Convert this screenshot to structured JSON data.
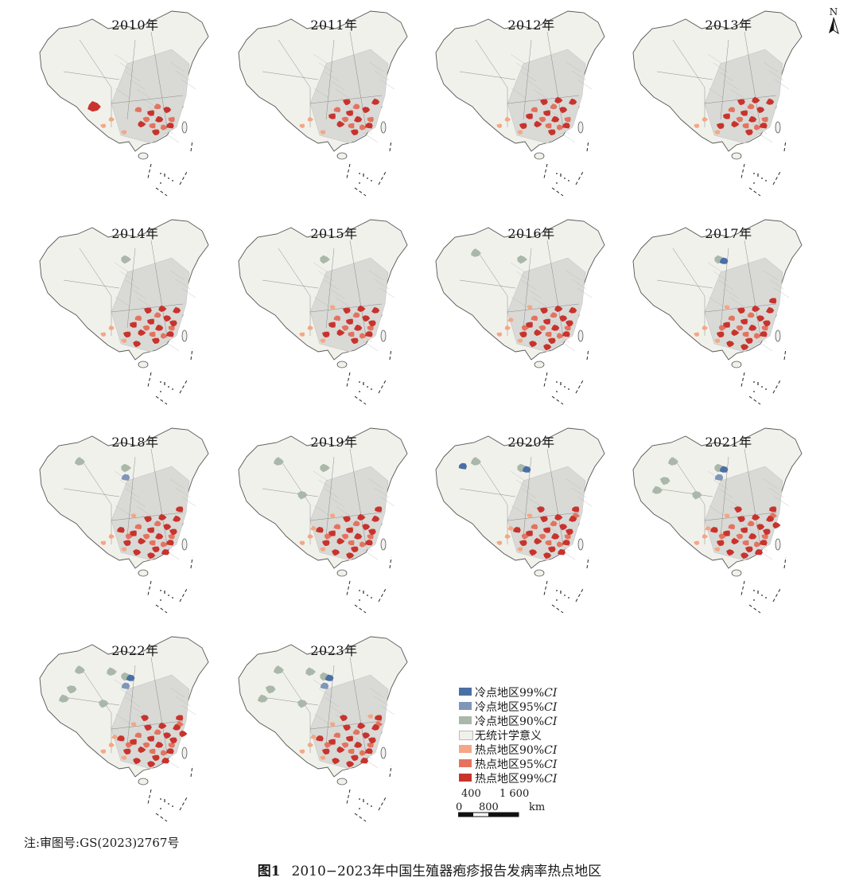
{
  "colors": {
    "cold99": "#4a6fa5",
    "cold95": "#7f96b8",
    "cold90": "#aab8a9",
    "none": "#f1f1ec",
    "hot90": "#f3a784",
    "hot95": "#e3735f",
    "hot99": "#c8332d",
    "boundary": "#555555",
    "county": "#b5b5b5"
  },
  "north_label": "N",
  "maps": [
    {
      "year": "2010年",
      "hot99": 6,
      "hot95": 6,
      "hot90": 3,
      "cold99": 0,
      "cold95": 0,
      "cold90": 0,
      "tibet_hot": 1
    },
    {
      "year": "2011年",
      "hot99": 9,
      "hot95": 6,
      "hot90": 3,
      "cold99": 0,
      "cold95": 0,
      "cold90": 0,
      "tibet_hot": 0
    },
    {
      "year": "2012年",
      "hot99": 11,
      "hot95": 6,
      "hot90": 3,
      "cold99": 0,
      "cold95": 0,
      "cold90": 0,
      "tibet_hot": 0
    },
    {
      "year": "2013年",
      "hot99": 11,
      "hot95": 6,
      "hot90": 3,
      "cold99": 0,
      "cold95": 0,
      "cold90": 0,
      "tibet_hot": 0
    },
    {
      "year": "2014年",
      "hot99": 13,
      "hot95": 6,
      "hot90": 3,
      "cold99": 0,
      "cold95": 0,
      "cold90": 1,
      "tibet_hot": 0
    },
    {
      "year": "2015年",
      "hot99": 12,
      "hot95": 6,
      "hot90": 4,
      "cold99": 0,
      "cold95": 0,
      "cold90": 1,
      "tibet_hot": 0
    },
    {
      "year": "2016年",
      "hot99": 14,
      "hot95": 7,
      "hot90": 5,
      "cold99": 0,
      "cold95": 0,
      "cold90": 2,
      "tibet_hot": 0
    },
    {
      "year": "2017年",
      "hot99": 15,
      "hot95": 7,
      "hot90": 4,
      "cold99": 1,
      "cold95": 0,
      "cold90": 1,
      "tibet_hot": 0
    },
    {
      "year": "2018年",
      "hot99": 17,
      "hot95": 7,
      "hot90": 4,
      "cold99": 0,
      "cold95": 1,
      "cold90": 2,
      "tibet_hot": 0
    },
    {
      "year": "2019年",
      "hot99": 16,
      "hot95": 7,
      "hot90": 5,
      "cold99": 0,
      "cold95": 0,
      "cold90": 3,
      "tibet_hot": 0
    },
    {
      "year": "2020年",
      "hot99": 18,
      "hot95": 8,
      "hot90": 5,
      "cold99": 2,
      "cold95": 0,
      "cold90": 2,
      "tibet_hot": 0
    },
    {
      "year": "2021年",
      "hot99": 19,
      "hot95": 8,
      "hot90": 5,
      "cold99": 1,
      "cold95": 1,
      "cold90": 5,
      "tibet_hot": 0
    },
    {
      "year": "2022年",
      "hot99": 19,
      "hot95": 8,
      "hot90": 5,
      "cold99": 1,
      "cold95": 1,
      "cold90": 6,
      "tibet_hot": 0
    },
    {
      "year": "2023年",
      "hot99": 18,
      "hot95": 8,
      "hot90": 6,
      "cold99": 1,
      "cold95": 1,
      "cold90": 6,
      "tibet_hot": 0
    }
  ],
  "legend": [
    {
      "key": "cold99",
      "prefix": "冷点地区99%",
      "ci": "CI"
    },
    {
      "key": "cold95",
      "prefix": "冷点地区95%",
      "ci": "CI"
    },
    {
      "key": "cold90",
      "prefix": "冷点地区90%",
      "ci": "CI"
    },
    {
      "key": "none",
      "prefix": "无统计学意义",
      "ci": ""
    },
    {
      "key": "hot90",
      "prefix": "热点地区90%",
      "ci": "CI"
    },
    {
      "key": "hot95",
      "prefix": "热点地区95%",
      "ci": "CI"
    },
    {
      "key": "hot99",
      "prefix": "热点地区99%",
      "ci": "CI"
    }
  ],
  "scale": {
    "top_labels": [
      "400",
      "1 600"
    ],
    "bottom_labels": [
      "0",
      "800"
    ],
    "unit": "km"
  },
  "note": "注:审图号:GS(2023)2767号",
  "caption": {
    "label": "图1",
    "text": "2010−2023年中国生殖器疱疹报告发病率热点地区"
  }
}
